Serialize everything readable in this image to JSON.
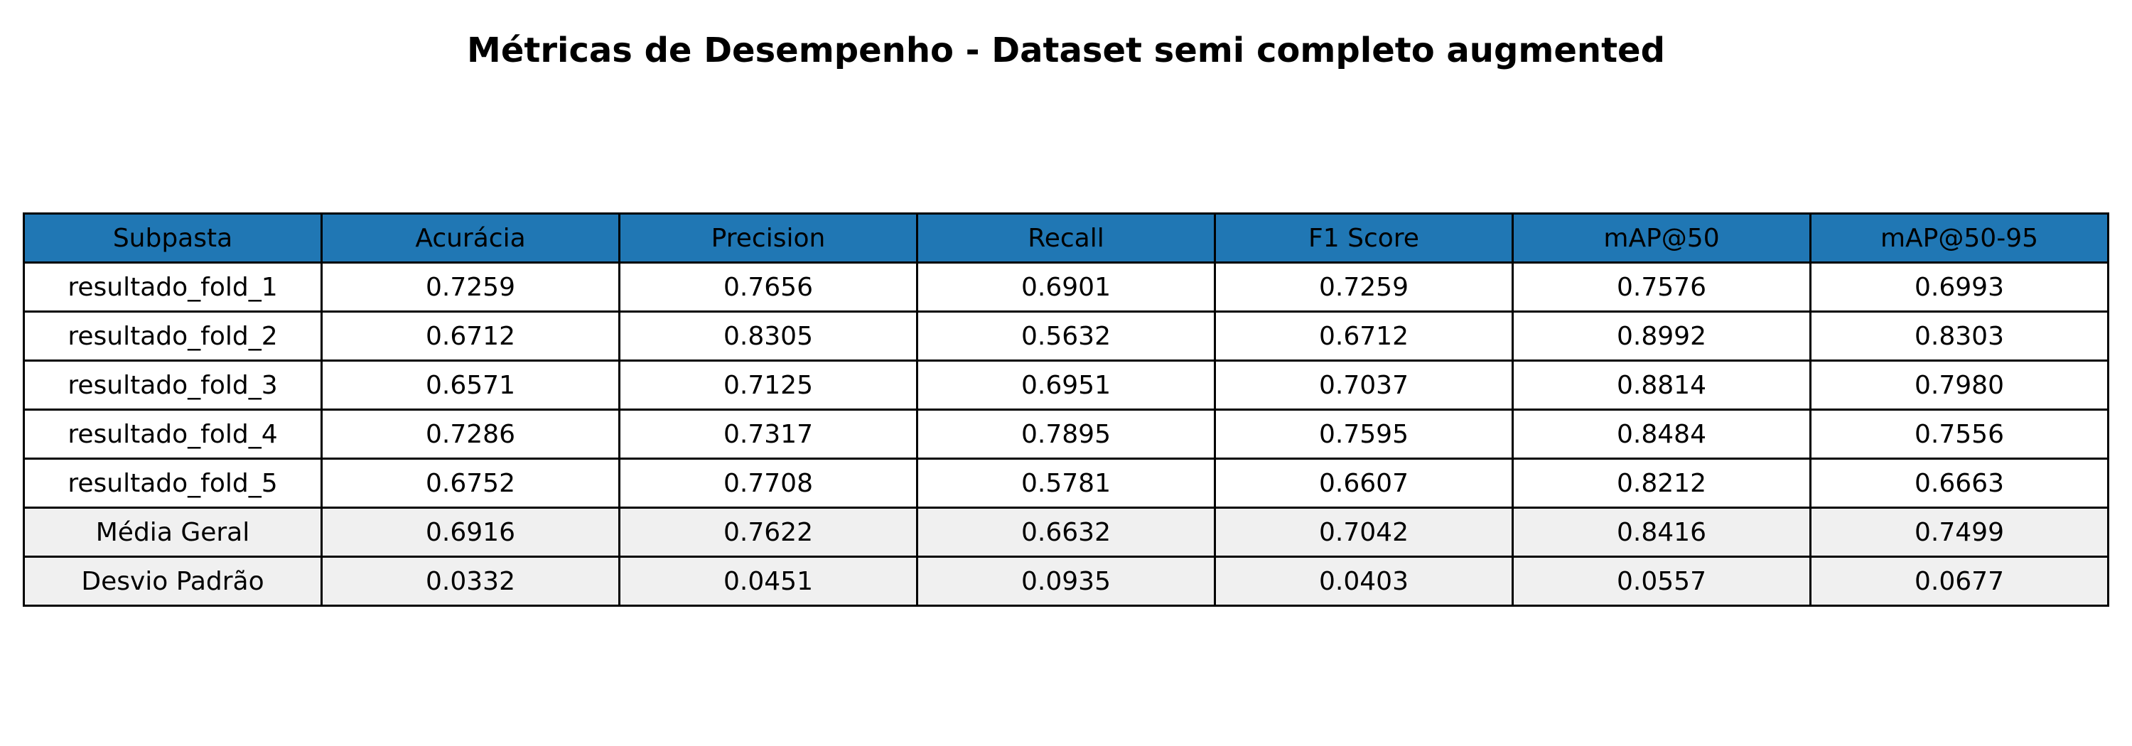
{
  "chart_data": {
    "type": "table",
    "title": "Métricas de Desempenho - Dataset semi completo augmented",
    "columns": [
      "Subpasta",
      "Acurácia",
      "Precision",
      "Recall",
      "F1 Score",
      "mAP@50",
      "mAP@50-95"
    ],
    "rows": [
      [
        "resultado_fold_1",
        "0.7259",
        "0.7656",
        "0.6901",
        "0.7259",
        "0.7576",
        "0.6993"
      ],
      [
        "resultado_fold_2",
        "0.6712",
        "0.8305",
        "0.5632",
        "0.6712",
        "0.8992",
        "0.8303"
      ],
      [
        "resultado_fold_3",
        "0.6571",
        "0.7125",
        "0.6951",
        "0.7037",
        "0.8814",
        "0.7980"
      ],
      [
        "resultado_fold_4",
        "0.7286",
        "0.7317",
        "0.7895",
        "0.7595",
        "0.8484",
        "0.7556"
      ],
      [
        "resultado_fold_5",
        "0.6752",
        "0.7708",
        "0.5781",
        "0.6607",
        "0.8212",
        "0.6663"
      ],
      [
        "Média Geral",
        "0.6916",
        "0.7622",
        "0.6632",
        "0.7042",
        "0.8416",
        "0.7499"
      ],
      [
        "Desvio Padrão",
        "0.0332",
        "0.0451",
        "0.0935",
        "0.0403",
        "0.0557",
        "0.0677"
      ]
    ],
    "summary_rows": [
      "Média Geral",
      "Desvio Padrão"
    ],
    "colors": {
      "header_background": "#2077b4",
      "summary_background": "#f0f0f0",
      "border": "#000000"
    }
  }
}
